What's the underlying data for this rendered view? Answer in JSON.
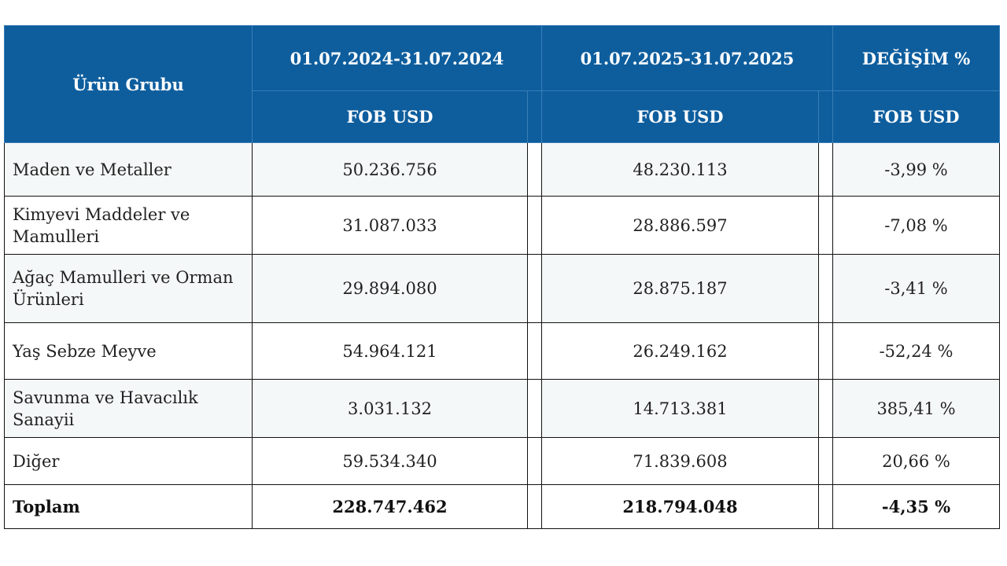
{
  "header": {
    "product_group": "Ürün Grubu",
    "period_2024": "01.07.2024-31.07.2024",
    "period_2025": "01.07.2025-31.07.2025",
    "change": "DEĞİŞİM %",
    "unit_2024": "FOB USD",
    "unit_2025": "FOB USD",
    "unit_change": "FOB USD"
  },
  "rows": [
    {
      "name": "Maden ve Metaller",
      "v2024": "50.236.756",
      "v2025": "48.230.113",
      "change": "-3,99 %"
    },
    {
      "name": "Kimyevi Maddeler ve Mamulleri",
      "v2024": "31.087.033",
      "v2025": "28.886.597",
      "change": "-7,08 %"
    },
    {
      "name": "Ağaç Mamulleri ve Orman Ürünleri",
      "v2024": "29.894.080",
      "v2025": "28.875.187",
      "change": "-3,41 %"
    },
    {
      "name": "Yaş Sebze Meyve",
      "v2024": "54.964.121",
      "v2025": "26.249.162",
      "change": "-52,24 %"
    },
    {
      "name": "Savunma ve Havacılık Sanayii",
      "v2024": "3.031.132",
      "v2025": "14.713.381",
      "change": "385,41 %"
    },
    {
      "name": "Diğer",
      "v2024": "59.534.340",
      "v2025": "71.839.608",
      "change": "20,66 %"
    }
  ],
  "total": {
    "name": "Toplam",
    "v2024": "228.747.462",
    "v2025": "218.794.048",
    "change": "-4,35 %"
  },
  "colors": {
    "header_bg": "#0e5e9e",
    "row_alt_bg": "#f5f8f8"
  }
}
